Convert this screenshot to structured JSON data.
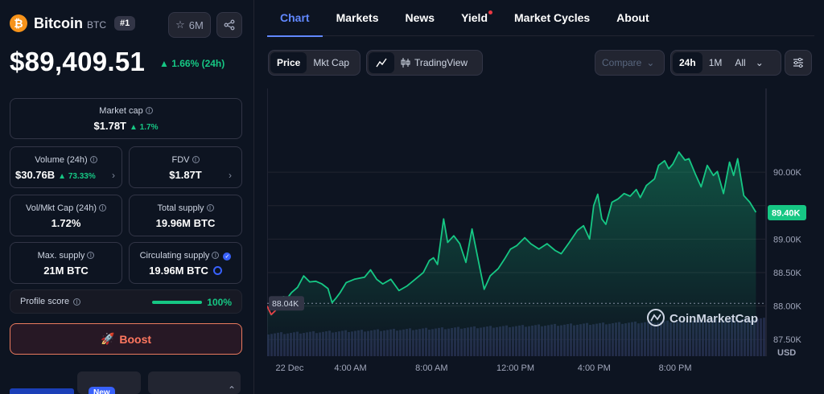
{
  "coin": {
    "logo_glyph": "₿",
    "name": "Bitcoin",
    "symbol": "BTC",
    "rank": "#1",
    "watchlist_count": "6M",
    "price": "$89,409.51",
    "change": "▲ 1.66% (24h)"
  },
  "stats": {
    "market_cap": {
      "label": "Market cap",
      "value": "$1.78T",
      "delta": "▲ 1.7%"
    },
    "volume": {
      "label": "Volume (24h)",
      "value": "$30.76B",
      "delta": "▲ 73.33%"
    },
    "fdv": {
      "label": "FDV",
      "value": "$1.87T"
    },
    "vol_mkt_cap": {
      "label": "Vol/Mkt Cap (24h)",
      "value": "1.72%"
    },
    "total_supply": {
      "label": "Total supply",
      "value": "19.96M BTC"
    },
    "max_supply": {
      "label": "Max. supply",
      "value": "21M BTC"
    },
    "circulating_supply": {
      "label": "Circulating supply",
      "value": "19.96M BTC"
    }
  },
  "profile": {
    "label": "Profile score",
    "value": "100%",
    "fill_fraction": 1.0
  },
  "boost_label": "Boost",
  "new_badge": "New",
  "tabs": [
    {
      "label": "Chart"
    },
    {
      "label": "Markets"
    },
    {
      "label": "News"
    },
    {
      "label": "Yield"
    },
    {
      "label": "Market Cycles"
    },
    {
      "label": "About"
    }
  ],
  "toolbar": {
    "price_label": "Price",
    "mktcap_label": "Mkt Cap",
    "tradingview_label": "TradingView",
    "compare_label": "Compare",
    "range_24h": "24h",
    "range_1m": "1M",
    "range_all": "All"
  },
  "colors": {
    "up": "#16c784",
    "down": "#ea3943",
    "accent": "#6188ff",
    "bitcoin": "#f7931a",
    "boost": "#ff775f"
  },
  "chart_data": {
    "type": "area",
    "watermark": "CoinMarketCap",
    "y_unit": "USD",
    "ylim": [
      87250,
      91250
    ],
    "y_ticks": [
      {
        "value": 90000,
        "label": "90.00K"
      },
      {
        "value": 89500,
        "label": ""
      },
      {
        "value": 89000,
        "label": "89.00K"
      },
      {
        "value": 88500,
        "label": "88.50K"
      },
      {
        "value": 88000,
        "label": "88.00K"
      },
      {
        "value": 87500,
        "label": "87.50K"
      }
    ],
    "x_ticks": [
      "22 Dec",
      "4:00 AM",
      "8:00 AM",
      "12:00 PM",
      "4:00 PM",
      "8:00 PM"
    ],
    "x_tick_hours": [
      0,
      4,
      8,
      12,
      16,
      20
    ],
    "x_range_hours": [
      -0.1,
      24.5
    ],
    "current_price_label": "89.40K",
    "current_price": 89400,
    "open_price_label": "88.04K",
    "open_price": 88040,
    "grid": true,
    "series": [
      {
        "values": [
          [
            -0.1,
            88000
          ],
          [
            0.1,
            87870
          ],
          [
            0.3,
            87930
          ],
          [
            0.5,
            88050
          ],
          [
            0.7,
            88140
          ],
          [
            0.9,
            88120
          ],
          [
            1.1,
            88200
          ],
          [
            1.4,
            88280
          ],
          [
            1.7,
            88450
          ],
          [
            2.0,
            88360
          ],
          [
            2.3,
            88370
          ],
          [
            2.6,
            88330
          ],
          [
            2.9,
            88260
          ],
          [
            3.1,
            88050
          ],
          [
            3.3,
            88120
          ],
          [
            3.5,
            88200
          ],
          [
            3.8,
            88350
          ],
          [
            4.2,
            88400
          ],
          [
            4.7,
            88430
          ],
          [
            5.0,
            88540
          ],
          [
            5.3,
            88400
          ],
          [
            5.6,
            88330
          ],
          [
            6.0,
            88400
          ],
          [
            6.4,
            88230
          ],
          [
            6.8,
            88300
          ],
          [
            7.2,
            88400
          ],
          [
            7.6,
            88500
          ],
          [
            7.9,
            88680
          ],
          [
            8.1,
            88720
          ],
          [
            8.3,
            88620
          ],
          [
            8.6,
            89300
          ],
          [
            8.8,
            88950
          ],
          [
            9.1,
            89050
          ],
          [
            9.4,
            88930
          ],
          [
            9.7,
            88650
          ],
          [
            10.0,
            89150
          ],
          [
            10.2,
            88850
          ],
          [
            10.4,
            88550
          ],
          [
            10.6,
            88250
          ],
          [
            10.9,
            88450
          ],
          [
            11.3,
            88560
          ],
          [
            11.6,
            88700
          ],
          [
            11.9,
            88850
          ],
          [
            12.2,
            88900
          ],
          [
            12.6,
            89020
          ],
          [
            12.9,
            88930
          ],
          [
            13.3,
            88850
          ],
          [
            13.7,
            88930
          ],
          [
            14.1,
            88830
          ],
          [
            14.4,
            88780
          ],
          [
            14.8,
            88950
          ],
          [
            15.2,
            89130
          ],
          [
            15.5,
            89200
          ],
          [
            15.8,
            89000
          ],
          [
            16.0,
            89500
          ],
          [
            16.2,
            89670
          ],
          [
            16.4,
            89300
          ],
          [
            16.6,
            89220
          ],
          [
            16.9,
            89550
          ],
          [
            17.2,
            89600
          ],
          [
            17.5,
            89680
          ],
          [
            17.8,
            89640
          ],
          [
            18.1,
            89740
          ],
          [
            18.3,
            89620
          ],
          [
            18.6,
            89800
          ],
          [
            19.0,
            89900
          ],
          [
            19.2,
            90100
          ],
          [
            19.5,
            90170
          ],
          [
            19.7,
            90050
          ],
          [
            19.9,
            90120
          ],
          [
            20.2,
            90300
          ],
          [
            20.5,
            90180
          ],
          [
            20.7,
            90200
          ],
          [
            21.0,
            89980
          ],
          [
            21.3,
            89780
          ],
          [
            21.6,
            90100
          ],
          [
            21.9,
            89950
          ],
          [
            22.1,
            90010
          ],
          [
            22.4,
            89680
          ],
          [
            22.7,
            90150
          ],
          [
            22.9,
            89950
          ],
          [
            23.1,
            90200
          ],
          [
            23.4,
            89650
          ],
          [
            23.7,
            89550
          ],
          [
            24.0,
            89400
          ]
        ]
      }
    ]
  }
}
